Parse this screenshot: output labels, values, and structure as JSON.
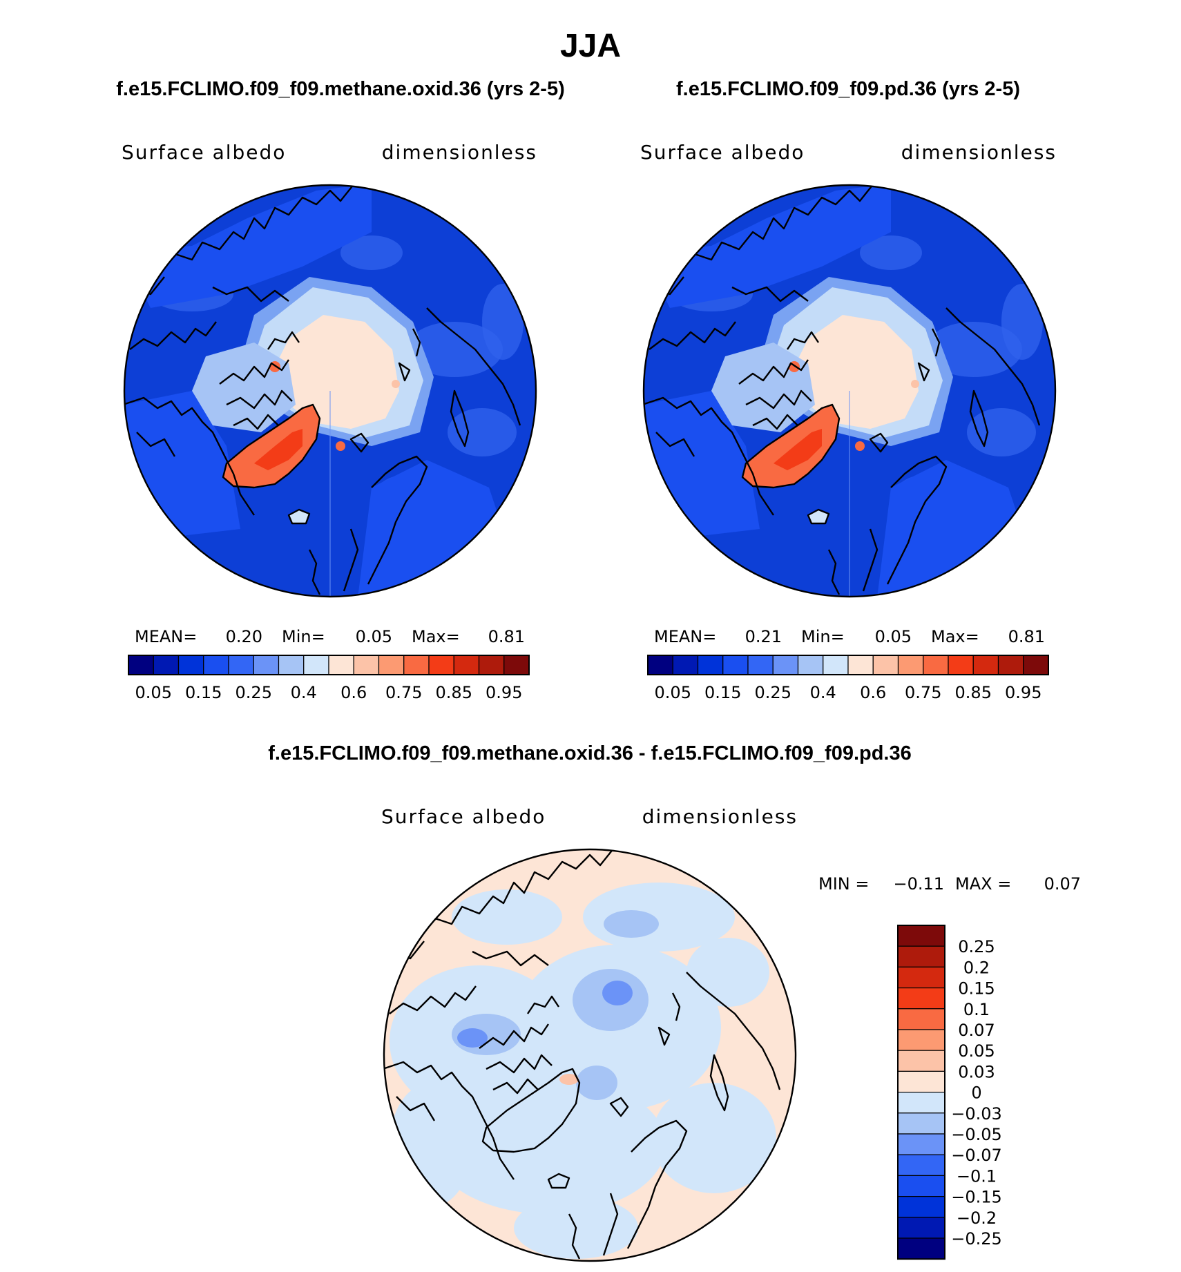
{
  "title": "JJA",
  "panels": [
    {
      "case": "f.e15.FCLIMO.f09_f09.methane.oxid.36 (yrs 2-5)",
      "variable": "Surface albedo",
      "units": "dimensionless",
      "stats": {
        "mean_label": "MEAN=",
        "mean": "0.20",
        "min_label": "Min=",
        "min": "0.05",
        "max_label": "Max=",
        "max": "0.81"
      }
    },
    {
      "case": "f.e15.FCLIMO.f09_f09.pd.36 (yrs 2-5)",
      "variable": "Surface albedo",
      "units": "dimensionless",
      "stats": {
        "mean_label": "MEAN=",
        "mean": "0.21",
        "min_label": "Min=",
        "min": "0.05",
        "max_label": "Max=",
        "max": "0.81"
      }
    }
  ],
  "abs_colorbar": {
    "colors": [
      "#000080",
      "#0019b3",
      "#0033d9",
      "#1a4ff0",
      "#3366f5",
      "#6b93f7",
      "#a6c4f5",
      "#d2e6fa",
      "#fde5d6",
      "#fcc3a8",
      "#fc9a72",
      "#f96a42",
      "#f33c17",
      "#d4290f",
      "#ae1b0c",
      "#7d0a0a"
    ],
    "labels": [
      "0.05",
      "0.15",
      "0.25",
      "0.4",
      "0.6",
      "0.75",
      "0.85",
      "0.95"
    ]
  },
  "diff_panel": {
    "case": "f.e15.FCLIMO.f09_f09.methane.oxid.36 - f.e15.FCLIMO.f09_f09.pd.36",
    "variable": "Surface albedo",
    "units": "dimensionless",
    "min_label": "MIN =",
    "min": "−0.11",
    "max_label": "MAX =",
    "max": "0.07"
  },
  "diff_colorbar": {
    "colors": [
      "#7d0a0a",
      "#ae1b0c",
      "#d4290f",
      "#f33c17",
      "#f96a42",
      "#fc9a72",
      "#fcc3a8",
      "#fde5d6",
      "#d2e6fa",
      "#a6c4f5",
      "#6b93f7",
      "#3366f5",
      "#1a4ff0",
      "#0033d9",
      "#0019b3",
      "#000080"
    ],
    "labels": [
      "0.25",
      "0.2",
      "0.15",
      "0.1",
      "0.07",
      "0.05",
      "0.03",
      "0",
      "−0.03",
      "−0.05",
      "−0.07",
      "−0.1",
      "−0.15",
      "−0.2",
      "−0.25"
    ]
  },
  "map_colors": {
    "ocean": "#0d3fd6",
    "ocean_light": "#2f62ec",
    "seaice_edge": "#7aa3f2",
    "seaice": "#c4dcf8",
    "icecap": "#fde5d6",
    "greenland": "#f96a42",
    "greenland_core": "#f33c17",
    "diff_bg": "#fde5d6",
    "diff_neg": "#d2e6fa",
    "diff_neg2": "#a6c4f5",
    "diff_neg3": "#6b93f7",
    "coast": "#000000"
  }
}
